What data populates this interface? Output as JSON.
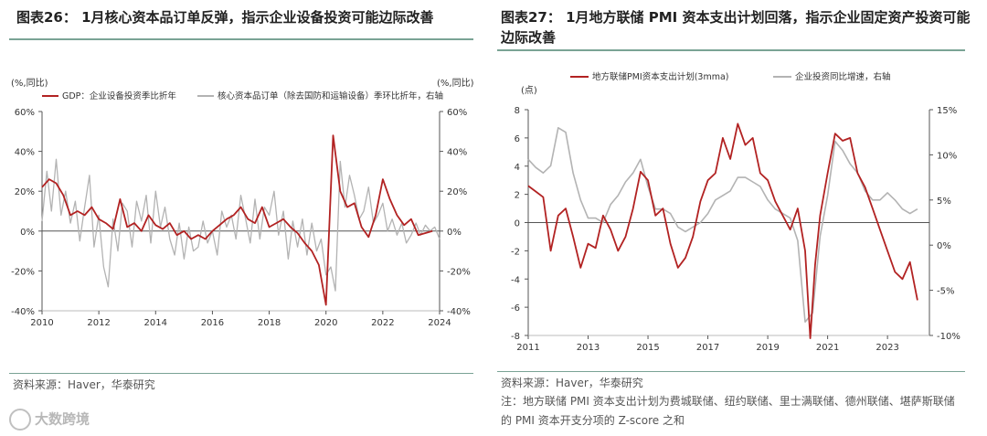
{
  "left": {
    "title": "图表26： 1月核心资本品订单反弹，指示企业设备投资可能边际改善",
    "source": "资料来源：Haver，华泰研究"
  },
  "right": {
    "title": "图表27： 1月地方联储 PMI 资本支出计划回落，指示企业固定资产投资可能边际改善",
    "source": "资料来源：Haver，华泰研究",
    "note": "注：地方联储 PMI 资本支出计划为费城联储、纽约联储、里士满联储、德州联储、堪萨斯联储的 PMI 资本开支分项的 Z-score 之和"
  },
  "watermark": "大数跨境",
  "colors": {
    "red": "#b22222",
    "gray": "#b3b3b3",
    "axis": "#555555",
    "rule": "#7aa395"
  },
  "chart_data": [
    {
      "type": "line",
      "title": "1月核心资本品订单反弹，指示企业设备投资可能边际改善",
      "left_unit": "(%,同比)",
      "right_unit": "(%,同比)",
      "ylim": [
        -40,
        60
      ],
      "yticks": [
        "60%",
        "40%",
        "20%",
        "0%",
        "-20%",
        "-40%"
      ],
      "ytick_values": [
        60,
        40,
        20,
        0,
        -20,
        -40
      ],
      "xticks": [
        "2010",
        "2012",
        "2014",
        "2016",
        "2018",
        "2020",
        "2022",
        "2024"
      ],
      "xtick_values": [
        2010,
        2012,
        2014,
        2016,
        2018,
        2020,
        2022,
        2024
      ],
      "xlim": [
        2010,
        2024
      ],
      "series": [
        {
          "name": "GDP：企业设备投资季比折年",
          "color": "#b22222",
          "x": [
            2010.0,
            2010.25,
            2010.5,
            2010.75,
            2011.0,
            2011.25,
            2011.5,
            2011.75,
            2012.0,
            2012.25,
            2012.5,
            2012.75,
            2013.0,
            2013.25,
            2013.5,
            2013.75,
            2014.0,
            2014.25,
            2014.5,
            2014.75,
            2015.0,
            2015.25,
            2015.5,
            2015.75,
            2016.0,
            2016.25,
            2016.5,
            2016.75,
            2017.0,
            2017.25,
            2017.5,
            2017.75,
            2018.0,
            2018.25,
            2018.5,
            2018.75,
            2019.0,
            2019.25,
            2019.5,
            2019.75,
            2020.0,
            2020.25,
            2020.5,
            2020.75,
            2021.0,
            2021.25,
            2021.5,
            2021.75,
            2022.0,
            2022.25,
            2022.5,
            2022.75,
            2023.0,
            2023.25,
            2023.5,
            2023.75
          ],
          "values": [
            22,
            26,
            24,
            18,
            8,
            10,
            8,
            12,
            6,
            4,
            1,
            16,
            2,
            4,
            0,
            8,
            3,
            1,
            4,
            -2,
            0,
            -4,
            -2,
            -4,
            0,
            3,
            6,
            8,
            12,
            6,
            4,
            12,
            2,
            4,
            6,
            2,
            -1,
            -6,
            -10,
            -17,
            -37,
            48,
            20,
            12,
            14,
            2,
            -3,
            8,
            26,
            16,
            8,
            3,
            6,
            -2,
            -1,
            0
          ]
        },
        {
          "name": "核心资本品订单（除去国防和运输设备）季环比折年，右轴",
          "color": "#b3b3b3",
          "x": [
            2010.0,
            2010.17,
            2010.33,
            2010.5,
            2010.67,
            2010.83,
            2011.0,
            2011.17,
            2011.33,
            2011.5,
            2011.67,
            2011.83,
            2012.0,
            2012.17,
            2012.33,
            2012.5,
            2012.67,
            2012.83,
            2013.0,
            2013.17,
            2013.33,
            2013.5,
            2013.67,
            2013.83,
            2014.0,
            2014.17,
            2014.33,
            2014.5,
            2014.67,
            2014.83,
            2015.0,
            2015.17,
            2015.33,
            2015.5,
            2015.67,
            2015.83,
            2016.0,
            2016.17,
            2016.33,
            2016.5,
            2016.67,
            2016.83,
            2017.0,
            2017.17,
            2017.33,
            2017.5,
            2017.67,
            2017.83,
            2018.0,
            2018.17,
            2018.33,
            2018.5,
            2018.67,
            2018.83,
            2019.0,
            2019.17,
            2019.33,
            2019.5,
            2019.67,
            2019.83,
            2020.0,
            2020.17,
            2020.33,
            2020.5,
            2020.67,
            2020.83,
            2021.0,
            2021.17,
            2021.33,
            2021.5,
            2021.67,
            2021.83,
            2022.0,
            2022.17,
            2022.33,
            2022.5,
            2022.67,
            2022.83,
            2023.0,
            2023.17,
            2023.33,
            2023.5,
            2023.67,
            2023.83,
            2024.0
          ],
          "values": [
            5,
            30,
            10,
            36,
            8,
            20,
            4,
            15,
            -5,
            12,
            28,
            -8,
            8,
            -18,
            -28,
            6,
            -10,
            14,
            10,
            -8,
            15,
            5,
            18,
            -6,
            20,
            2,
            12,
            -4,
            -12,
            4,
            -14,
            2,
            -10,
            -8,
            5,
            -6,
            0,
            -12,
            10,
            2,
            8,
            -4,
            18,
            6,
            -6,
            16,
            -4,
            12,
            8,
            20,
            -2,
            10,
            -14,
            5,
            -8,
            6,
            -12,
            4,
            -10,
            -4,
            -22,
            -18,
            -30,
            35,
            12,
            28,
            18,
            6,
            10,
            22,
            4,
            8,
            14,
            0,
            6,
            -2,
            4,
            -6,
            -2,
            4,
            -2,
            3,
            0,
            2,
            -4
          ]
        }
      ]
    },
    {
      "type": "line",
      "title": "1月地方联储 PMI 资本支出计划回落，指示企业固定资产投资可能边际改善",
      "left_unit": "(点)",
      "ylim": [
        -8,
        8
      ],
      "yticks": [
        "8",
        "6",
        "4",
        "2",
        "0",
        "-2",
        "-4",
        "-6",
        "-8"
      ],
      "ytick_values": [
        8,
        6,
        4,
        2,
        0,
        -2,
        -4,
        -6,
        -8
      ],
      "y2lim": [
        -10,
        15
      ],
      "y2ticks": [
        "15%",
        "10%",
        "5%",
        "0%",
        "-5%",
        "-10%"
      ],
      "y2tick_values": [
        15,
        10,
        5,
        0,
        -5,
        -10
      ],
      "xticks": [
        "2011",
        "2013",
        "2015",
        "2017",
        "2019",
        "2021",
        "2023"
      ],
      "xtick_values": [
        2011,
        2013,
        2015,
        2017,
        2019,
        2021,
        2023
      ],
      "xlim": [
        2011,
        2024.4
      ],
      "series": [
        {
          "name": "地方联储PMI资本支出计划(3mma)",
          "color": "#b22222",
          "axis": "left",
          "x": [
            2011.0,
            2011.25,
            2011.5,
            2011.75,
            2012.0,
            2012.25,
            2012.5,
            2012.75,
            2013.0,
            2013.25,
            2013.5,
            2013.75,
            2014.0,
            2014.25,
            2014.5,
            2014.75,
            2015.0,
            2015.25,
            2015.5,
            2015.75,
            2016.0,
            2016.25,
            2016.5,
            2016.75,
            2017.0,
            2017.25,
            2017.5,
            2017.75,
            2018.0,
            2018.25,
            2018.5,
            2018.75,
            2019.0,
            2019.25,
            2019.5,
            2019.75,
            2020.0,
            2020.25,
            2020.42,
            2020.58,
            2020.75,
            2021.0,
            2021.25,
            2021.5,
            2021.75,
            2022.0,
            2022.25,
            2022.5,
            2022.75,
            2023.0,
            2023.25,
            2023.5,
            2023.75,
            2024.0
          ],
          "values": [
            2.6,
            2.2,
            1.8,
            -2.0,
            0.5,
            1.0,
            -1.0,
            -3.2,
            -1.5,
            -1.8,
            0.5,
            -0.5,
            -2.0,
            -1.0,
            1.0,
            3.6,
            3.0,
            0.5,
            1.0,
            -1.5,
            -3.2,
            -2.5,
            -1.0,
            1.5,
            3.0,
            3.5,
            6.0,
            4.5,
            7.0,
            5.5,
            6.0,
            3.5,
            3.0,
            1.5,
            0.5,
            -0.5,
            1.0,
            -2.0,
            -8.2,
            -3.0,
            0.5,
            3.5,
            6.3,
            5.8,
            6.0,
            3.5,
            2.5,
            1.0,
            -0.5,
            -2.0,
            -3.5,
            -4.0,
            -2.8,
            -5.5
          ]
        },
        {
          "name": "企业投资同比增速，右轴",
          "color": "#b3b3b3",
          "axis": "right",
          "x": [
            2011.0,
            2011.25,
            2011.5,
            2011.75,
            2012.0,
            2012.25,
            2012.5,
            2012.75,
            2013.0,
            2013.25,
            2013.5,
            2013.75,
            2014.0,
            2014.25,
            2014.5,
            2014.75,
            2015.0,
            2015.25,
            2015.5,
            2015.75,
            2016.0,
            2016.25,
            2016.5,
            2016.75,
            2017.0,
            2017.25,
            2017.5,
            2017.75,
            2018.0,
            2018.25,
            2018.5,
            2018.75,
            2019.0,
            2019.25,
            2019.5,
            2019.75,
            2020.0,
            2020.25,
            2020.5,
            2020.75,
            2021.0,
            2021.25,
            2021.5,
            2021.75,
            2022.0,
            2022.25,
            2022.5,
            2022.75,
            2023.0,
            2023.25,
            2023.5,
            2023.75,
            2024.0
          ],
          "values": [
            9.5,
            8.6,
            8.0,
            8.8,
            13.0,
            12.5,
            8.0,
            5.0,
            3.0,
            3.0,
            2.5,
            4.5,
            5.5,
            7.0,
            8.0,
            9.5,
            6.5,
            4.0,
            4.0,
            3.5,
            2.0,
            1.5,
            2.0,
            2.5,
            3.5,
            5.0,
            5.5,
            6.0,
            7.5,
            7.5,
            7.0,
            6.5,
            5.0,
            4.0,
            3.5,
            3.0,
            0.5,
            -8.5,
            -7.5,
            1.0,
            5.5,
            11.5,
            10.5,
            9.0,
            8.0,
            6.0,
            5.0,
            5.0,
            5.8,
            5.0,
            4.0,
            3.5,
            4.0
          ]
        }
      ]
    }
  ]
}
